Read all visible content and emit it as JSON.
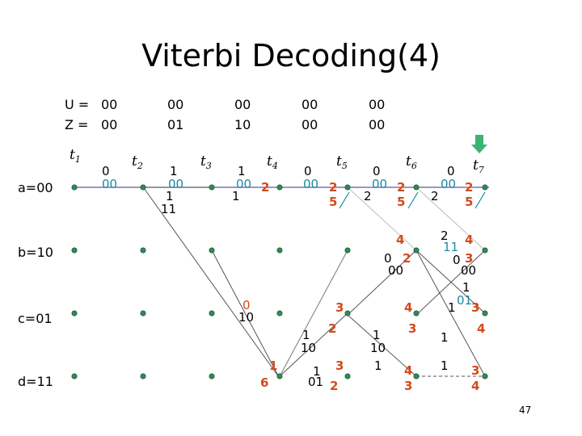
{
  "title": "Viterbi Decoding(4)",
  "sequences": {
    "u_label": "U =",
    "z_label": "Z =",
    "u_values": [
      "00",
      "00",
      "00",
      "00",
      "00"
    ],
    "z_values": [
      "00",
      "01",
      "10",
      "00",
      "00"
    ]
  },
  "times": [
    {
      "t": "t",
      "sub": "1"
    },
    {
      "t": "t",
      "sub": "2"
    },
    {
      "t": "t",
      "sub": "3"
    },
    {
      "t": "t",
      "sub": "4"
    },
    {
      "t": "t",
      "sub": "5"
    },
    {
      "t": "t",
      "sub": "6"
    },
    {
      "t": "t",
      "sub": "7"
    }
  ],
  "states": [
    "a=00",
    "b=10",
    "c=01",
    "d=11"
  ],
  "branch_labels": [
    {
      "text": "0",
      "color": "#000000"
    },
    {
      "text": "00",
      "color": "#1b8aa3"
    },
    {
      "text": "1",
      "color": "#000000"
    },
    {
      "text": "00",
      "color": "#1b8aa3"
    },
    {
      "text": "1",
      "color": "#000000"
    },
    {
      "text": "11",
      "color": "#000000"
    },
    {
      "text": "1",
      "color": "#000000"
    },
    {
      "text": "00",
      "color": "#1b8aa3"
    },
    {
      "text": "1",
      "color": "#000000"
    },
    {
      "text": "0",
      "color": "#000000"
    },
    {
      "text": "00",
      "color": "#1b8aa3"
    },
    {
      "text": "0",
      "color": "#000000"
    },
    {
      "text": "00",
      "color": "#1b8aa3"
    },
    {
      "text": "2",
      "color": "#000000"
    },
    {
      "text": "0",
      "color": "#000000"
    },
    {
      "text": "00",
      "color": "#1b8aa3"
    },
    {
      "text": "2",
      "color": "#000000"
    },
    {
      "text": "0",
      "color": "#000000"
    },
    {
      "text": "00",
      "color": "#000000"
    },
    {
      "text": "2",
      "color": "#000000"
    },
    {
      "text": "11",
      "color": "#1b8aa3"
    },
    {
      "text": "0",
      "color": "#000000"
    },
    {
      "text": "00",
      "color": "#000000"
    },
    {
      "text": "0",
      "color": "#d44a1a"
    },
    {
      "text": "10",
      "color": "#000000"
    },
    {
      "text": "1",
      "color": "#000000"
    },
    {
      "text": "10",
      "color": "#000000"
    },
    {
      "text": "1",
      "color": "#000000"
    },
    {
      "text": "10",
      "color": "#000000"
    },
    {
      "text": "1",
      "color": "#000000"
    },
    {
      "text": "1",
      "color": "#000000"
    },
    {
      "text": "01",
      "color": "#1b8aa3"
    },
    {
      "text": "1",
      "color": "#000000"
    },
    {
      "text": "1",
      "color": "#000000"
    },
    {
      "text": "01",
      "color": "#000000"
    },
    {
      "text": "1",
      "color": "#000000"
    },
    {
      "text": "1",
      "color": "#000000"
    }
  ],
  "path_metrics": [
    "2",
    "2",
    "5",
    "2",
    "5",
    "2",
    "5",
    "4",
    "2",
    "4",
    "3",
    "3",
    "2",
    "4",
    "3",
    "3",
    "4",
    "1",
    "6",
    "3",
    "2",
    "4",
    "3",
    "3",
    "4"
  ],
  "page_number": "47",
  "colors": {
    "node_fill": "#2e8b57",
    "trellis_line": "#5a5aa0",
    "trace_line": "#555555",
    "metric_orange": "#d44a1a",
    "label_teal": "#1b8aa3",
    "arrow_green": "#3cb371"
  }
}
